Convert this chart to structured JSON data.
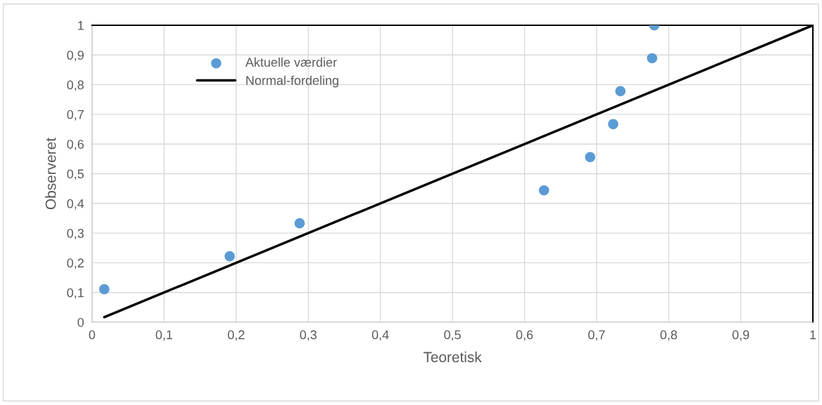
{
  "chart_data": {
    "type": "scatter",
    "xlabel": "Teoretisk",
    "ylabel": "Observeret",
    "xlim": [
      0,
      1
    ],
    "ylim": [
      0,
      1
    ],
    "xticks": [
      0,
      {
        "value": 0.1,
        "label": "0,1"
      },
      {
        "value": 0.2,
        "label": "0,2"
      },
      {
        "value": 0.3,
        "label": "0,3"
      },
      {
        "value": 0.4,
        "label": "0,4"
      },
      {
        "value": 0.5,
        "label": "0,5"
      },
      {
        "value": 0.6,
        "label": "0,6"
      },
      {
        "value": 0.7,
        "label": "0,7"
      },
      {
        "value": 0.8,
        "label": "0,8"
      },
      {
        "value": 0.9,
        "label": "0,9"
      },
      1
    ],
    "yticks": [
      0,
      {
        "value": 0.1,
        "label": "0,1"
      },
      {
        "value": 0.2,
        "label": "0,2"
      },
      {
        "value": 0.3,
        "label": "0,3"
      },
      {
        "value": 0.4,
        "label": "0,4"
      },
      {
        "value": 0.5,
        "label": "0,5"
      },
      {
        "value": 0.6,
        "label": "0,6"
      },
      {
        "value": 0.7,
        "label": "0,7"
      },
      {
        "value": 0.8,
        "label": "0,8"
      },
      {
        "value": 0.9,
        "label": "0,9"
      },
      1
    ],
    "grid": true,
    "legend": "top left",
    "series": [
      {
        "name": "Aktuelle værdier",
        "marker": "circle",
        "color": "#5b9bd5",
        "x": [
          0.017,
          0.191,
          0.288,
          0.627,
          0.691,
          0.723,
          0.733,
          0.777,
          0.78
        ],
        "values": [
          0.111,
          0.222,
          0.333,
          0.444,
          0.556,
          0.667,
          0.778,
          0.889,
          1.0
        ]
      },
      {
        "name": "Normal-fordeling",
        "type": "line",
        "marker": "none",
        "line_style": "solid",
        "color": "#000000",
        "x": [
          0.017,
          1.0
        ],
        "values": [
          0.017,
          1.0
        ]
      }
    ]
  }
}
